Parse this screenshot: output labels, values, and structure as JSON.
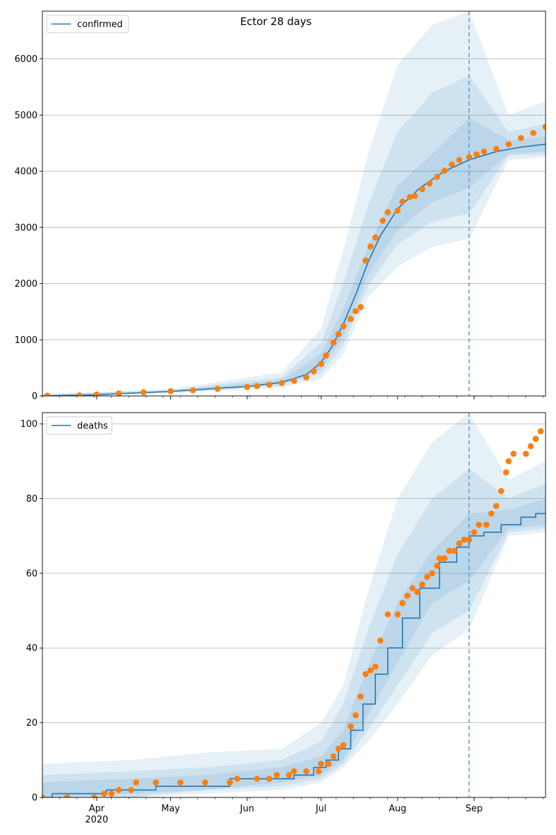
{
  "title": "Ector 28 days",
  "chart_data": [
    {
      "type": "line",
      "title": "Ector 28 days",
      "xlabel": "",
      "ylabel": "",
      "x_ticks": [
        "Apr\n2020",
        "May",
        "Jun",
        "Jul",
        "Aug",
        "Sep"
      ],
      "x_range": [
        "2020-03-10",
        "2020-09-30"
      ],
      "ylim": [
        0,
        6850
      ],
      "y_ticks": [
        0,
        1000,
        2000,
        3000,
        4000,
        5000,
        6000
      ],
      "grid": "horizontal",
      "legend": {
        "placement": "top-left",
        "entries": [
          "confirmed"
        ]
      },
      "forecast_start": "2020-08-30",
      "series": [
        {
          "name": "confirmed",
          "kind": "model-median",
          "points": [
            [
              "2020-03-10",
              0
            ],
            [
              "2020-04-01",
              20
            ],
            [
              "2020-05-01",
              80
            ],
            [
              "2020-06-01",
              170
            ],
            [
              "2020-06-15",
              240
            ],
            [
              "2020-06-25",
              380
            ],
            [
              "2020-07-01",
              600
            ],
            [
              "2020-07-05",
              850
            ],
            [
              "2020-07-10",
              1280
            ],
            [
              "2020-07-15",
              1800
            ],
            [
              "2020-07-20",
              2380
            ],
            [
              "2020-07-25",
              2850
            ],
            [
              "2020-08-01",
              3330
            ],
            [
              "2020-08-10",
              3700
            ],
            [
              "2020-08-20",
              4000
            ],
            [
              "2020-08-30",
              4200
            ],
            [
              "2020-09-10",
              4350
            ],
            [
              "2020-09-20",
              4430
            ],
            [
              "2020-09-30",
              4480
            ]
          ]
        },
        {
          "kind": "observed",
          "points": [
            [
              "2020-03-12",
              5
            ],
            [
              "2020-03-25",
              10
            ],
            [
              "2020-04-01",
              25
            ],
            [
              "2020-04-10",
              45
            ],
            [
              "2020-04-20",
              65
            ],
            [
              "2020-05-01",
              85
            ],
            [
              "2020-05-10",
              100
            ],
            [
              "2020-05-20",
              125
            ],
            [
              "2020-06-01",
              160
            ],
            [
              "2020-06-05",
              175
            ],
            [
              "2020-06-10",
              200
            ],
            [
              "2020-06-15",
              230
            ],
            [
              "2020-06-20",
              270
            ],
            [
              "2020-06-25",
              330
            ],
            [
              "2020-06-28",
              440
            ],
            [
              "2020-07-01",
              570
            ],
            [
              "2020-07-03",
              720
            ],
            [
              "2020-07-06",
              950
            ],
            [
              "2020-07-08",
              1100
            ],
            [
              "2020-07-10",
              1240
            ],
            [
              "2020-07-13",
              1370
            ],
            [
              "2020-07-15",
              1510
            ],
            [
              "2020-07-17",
              1580
            ],
            [
              "2020-07-19",
              2410
            ],
            [
              "2020-07-21",
              2660
            ],
            [
              "2020-07-23",
              2820
            ],
            [
              "2020-07-26",
              3120
            ],
            [
              "2020-07-28",
              3270
            ],
            [
              "2020-08-01",
              3300
            ],
            [
              "2020-08-03",
              3460
            ],
            [
              "2020-08-06",
              3540
            ],
            [
              "2020-08-08",
              3560
            ],
            [
              "2020-08-11",
              3680
            ],
            [
              "2020-08-14",
              3780
            ],
            [
              "2020-08-17",
              3900
            ],
            [
              "2020-08-20",
              4010
            ],
            [
              "2020-08-23",
              4120
            ],
            [
              "2020-08-26",
              4200
            ],
            [
              "2020-08-30",
              4250
            ],
            [
              "2020-09-02",
              4300
            ],
            [
              "2020-09-05",
              4350
            ],
            [
              "2020-09-10",
              4400
            ],
            [
              "2020-09-15",
              4480
            ],
            [
              "2020-09-20",
              4590
            ],
            [
              "2020-09-25",
              4680
            ],
            [
              "2020-09-30",
              4790
            ]
          ]
        }
      ],
      "bands": [
        {
          "level": "outer",
          "x": [
            "2020-03-10",
            "2020-05-01",
            "2020-06-15",
            "2020-07-01",
            "2020-07-10",
            "2020-07-20",
            "2020-08-01",
            "2020-08-15",
            "2020-08-30",
            "2020-09-15",
            "2020-09-30"
          ],
          "lower": [
            0,
            50,
            150,
            300,
            750,
            1750,
            2300,
            2650,
            2800,
            4200,
            4250
          ],
          "upper": [
            30,
            120,
            420,
            1200,
            2600,
            4300,
            5900,
            6600,
            6850,
            5000,
            5250
          ]
        },
        {
          "level": "middle",
          "x": [
            "2020-03-10",
            "2020-05-01",
            "2020-06-15",
            "2020-07-01",
            "2020-07-10",
            "2020-07-20",
            "2020-08-01",
            "2020-08-15",
            "2020-08-30",
            "2020-09-15",
            "2020-09-30"
          ],
          "lower": [
            0,
            60,
            180,
            400,
            900,
            1950,
            2700,
            3100,
            3250,
            4280,
            4300
          ],
          "upper": [
            25,
            105,
            330,
            950,
            2000,
            3400,
            4700,
            5400,
            5700,
            4700,
            4850
          ]
        },
        {
          "level": "inner",
          "x": [
            "2020-03-10",
            "2020-05-01",
            "2020-06-15",
            "2020-07-01",
            "2020-07-10",
            "2020-07-20",
            "2020-08-01",
            "2020-08-15",
            "2020-08-30",
            "2020-09-15",
            "2020-09-30"
          ],
          "lower": [
            0,
            70,
            210,
            480,
            1050,
            2150,
            2950,
            3450,
            3700,
            4310,
            4350
          ],
          "upper": [
            20,
            95,
            280,
            750,
            1550,
            2650,
            3750,
            4300,
            4950,
            4550,
            4620
          ]
        }
      ]
    },
    {
      "type": "line",
      "title": "",
      "xlabel": "",
      "ylabel": "",
      "x_ticks": [
        "Apr\n2020",
        "May",
        "Jun",
        "Jul",
        "Aug",
        "Sep"
      ],
      "x_range": [
        "2020-03-10",
        "2020-09-30"
      ],
      "ylim": [
        0,
        103
      ],
      "y_ticks": [
        0,
        20,
        40,
        60,
        80,
        100
      ],
      "grid": "horizontal",
      "legend": {
        "placement": "top-left",
        "entries": [
          "deaths"
        ]
      },
      "forecast_start": "2020-08-30",
      "series": [
        {
          "name": "deaths",
          "kind": "model-median",
          "step": true,
          "points": [
            [
              "2020-03-10",
              0
            ],
            [
              "2020-03-14",
              1
            ],
            [
              "2020-04-05",
              2
            ],
            [
              "2020-04-25",
              3
            ],
            [
              "2020-05-25",
              5
            ],
            [
              "2020-06-20",
              6
            ],
            [
              "2020-06-28",
              8
            ],
            [
              "2020-07-03",
              10
            ],
            [
              "2020-07-08",
              13
            ],
            [
              "2020-07-13",
              18
            ],
            [
              "2020-07-18",
              25
            ],
            [
              "2020-07-23",
              33
            ],
            [
              "2020-07-28",
              40
            ],
            [
              "2020-08-03",
              48
            ],
            [
              "2020-08-10",
              56
            ],
            [
              "2020-08-18",
              63
            ],
            [
              "2020-08-25",
              67
            ],
            [
              "2020-08-30",
              70
            ],
            [
              "2020-09-05",
              71
            ],
            [
              "2020-09-12",
              73
            ],
            [
              "2020-09-20",
              75
            ],
            [
              "2020-09-26",
              76
            ],
            [
              "2020-09-30",
              76
            ]
          ]
        },
        {
          "kind": "observed",
          "points": [
            [
              "2020-03-10",
              0
            ],
            [
              "2020-03-20",
              0
            ],
            [
              "2020-03-31",
              0
            ],
            [
              "2020-04-04",
              1
            ],
            [
              "2020-04-07",
              1
            ],
            [
              "2020-04-10",
              2
            ],
            [
              "2020-04-15",
              2
            ],
            [
              "2020-04-17",
              4
            ],
            [
              "2020-04-25",
              4
            ],
            [
              "2020-05-05",
              4
            ],
            [
              "2020-05-15",
              4
            ],
            [
              "2020-05-25",
              4
            ],
            [
              "2020-05-28",
              5
            ],
            [
              "2020-06-05",
              5
            ],
            [
              "2020-06-10",
              5
            ],
            [
              "2020-06-13",
              6
            ],
            [
              "2020-06-18",
              6
            ],
            [
              "2020-06-20",
              7
            ],
            [
              "2020-06-25",
              7
            ],
            [
              "2020-06-30",
              7
            ],
            [
              "2020-07-01",
              9
            ],
            [
              "2020-07-04",
              9
            ],
            [
              "2020-07-06",
              11
            ],
            [
              "2020-07-08",
              13
            ],
            [
              "2020-07-10",
              14
            ],
            [
              "2020-07-13",
              19
            ],
            [
              "2020-07-15",
              22
            ],
            [
              "2020-07-17",
              27
            ],
            [
              "2020-07-19",
              33
            ],
            [
              "2020-07-21",
              34
            ],
            [
              "2020-07-23",
              35
            ],
            [
              "2020-07-25",
              42
            ],
            [
              "2020-07-28",
              49
            ],
            [
              "2020-08-01",
              49
            ],
            [
              "2020-08-03",
              52
            ],
            [
              "2020-08-05",
              54
            ],
            [
              "2020-08-07",
              56
            ],
            [
              "2020-08-09",
              55
            ],
            [
              "2020-08-11",
              57
            ],
            [
              "2020-08-13",
              59
            ],
            [
              "2020-08-15",
              60
            ],
            [
              "2020-08-17",
              62
            ],
            [
              "2020-08-18",
              64
            ],
            [
              "2020-08-20",
              64
            ],
            [
              "2020-08-22",
              66
            ],
            [
              "2020-08-24",
              66
            ],
            [
              "2020-08-26",
              68
            ],
            [
              "2020-08-28",
              69
            ],
            [
              "2020-08-30",
              69
            ],
            [
              "2020-09-01",
              71
            ],
            [
              "2020-09-03",
              73
            ],
            [
              "2020-09-06",
              73
            ],
            [
              "2020-09-08",
              76
            ],
            [
              "2020-09-10",
              78
            ],
            [
              "2020-09-12",
              82
            ],
            [
              "2020-09-14",
              87
            ],
            [
              "2020-09-15",
              90
            ],
            [
              "2020-09-17",
              92
            ],
            [
              "2020-09-22",
              92
            ],
            [
              "2020-09-24",
              94
            ],
            [
              "2020-09-26",
              96
            ],
            [
              "2020-09-28",
              98
            ]
          ]
        }
      ],
      "bands": [
        {
          "level": "outer",
          "x": [
            "2020-03-10",
            "2020-04-15",
            "2020-05-15",
            "2020-06-15",
            "2020-07-01",
            "2020-07-10",
            "2020-07-20",
            "2020-08-01",
            "2020-08-15",
            "2020-08-30",
            "2020-09-15",
            "2020-09-30"
          ],
          "lower": [
            0,
            0,
            1,
            2,
            4,
            8,
            15,
            25,
            38,
            45,
            70,
            71
          ],
          "upper": [
            9,
            10,
            12,
            13,
            20,
            30,
            55,
            80,
            95,
            103,
            85,
            90
          ]
        },
        {
          "level": "middle",
          "x": [
            "2020-03-10",
            "2020-04-15",
            "2020-05-15",
            "2020-06-15",
            "2020-07-01",
            "2020-07-10",
            "2020-07-20",
            "2020-08-01",
            "2020-08-15",
            "2020-08-30",
            "2020-09-15",
            "2020-09-30"
          ],
          "lower": [
            0,
            0,
            2,
            3,
            5,
            9,
            18,
            30,
            44,
            50,
            71,
            72
          ],
          "upper": [
            6,
            7,
            8,
            10,
            15,
            25,
            45,
            65,
            80,
            88,
            80,
            84
          ]
        },
        {
          "level": "inner",
          "x": [
            "2020-03-10",
            "2020-04-15",
            "2020-05-15",
            "2020-06-15",
            "2020-07-01",
            "2020-07-10",
            "2020-07-20",
            "2020-08-01",
            "2020-08-15",
            "2020-08-30",
            "2020-09-15",
            "2020-09-30"
          ],
          "lower": [
            0,
            1,
            2,
            4,
            6,
            10,
            22,
            36,
            52,
            58,
            72,
            73
          ],
          "upper": [
            4,
            5,
            6,
            8,
            11,
            18,
            35,
            52,
            66,
            76,
            77,
            80
          ]
        }
      ]
    }
  ],
  "colors": {
    "median": "#1f77b4",
    "observed": "#ff7f0e",
    "band": "#1f77b4",
    "grid": "#b0b0b0",
    "forecast_line": "#5b9bd5"
  }
}
